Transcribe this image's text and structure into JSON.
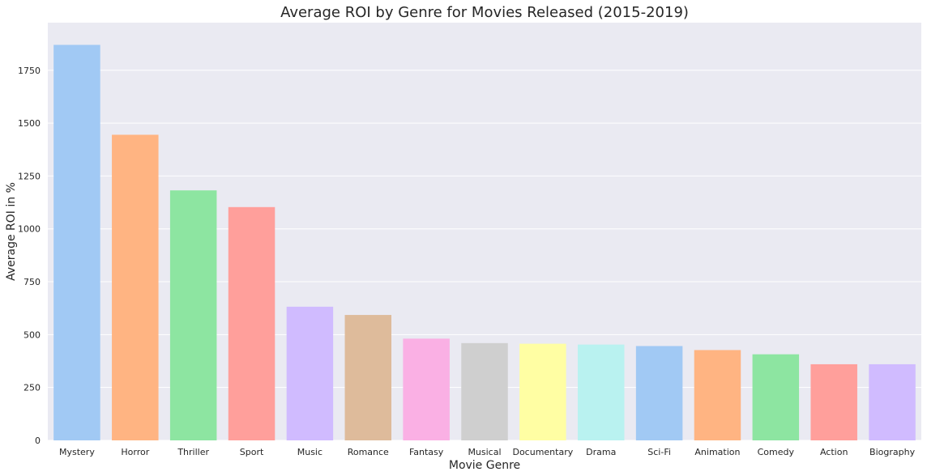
{
  "chart_data": {
    "type": "bar",
    "title": "Average ROI by Genre for Movies Released (2015-2019)",
    "xlabel": "Movie Genre",
    "ylabel": "Average ROI in %",
    "categories": [
      "Mystery",
      "Horror",
      "Thriller",
      "Sport",
      "Music",
      "Romance",
      "Fantasy",
      "Musical",
      "Documentary",
      "Drama",
      "Sci-Fi",
      "Animation",
      "Comedy",
      "Action",
      "Biography"
    ],
    "values": [
      1870,
      1445,
      1182,
      1103,
      632,
      593,
      481,
      460,
      457,
      453,
      446,
      427,
      407,
      360,
      360
    ],
    "ylim": [
      0,
      1975
    ],
    "yticks": [
      "0",
      "250",
      "500",
      "750",
      "1000",
      "1250",
      "1500",
      "1750"
    ],
    "grid": true,
    "colors": [
      "#a1c9f4",
      "#ffb482",
      "#8de5a1",
      "#ff9f9b",
      "#d0bbff",
      "#debb9b",
      "#fab0e4",
      "#cfcfcf",
      "#fffea3",
      "#b9f2f0",
      "#a1c9f4",
      "#ffb482",
      "#8de5a1",
      "#ff9f9b",
      "#d0bbff"
    ],
    "plot_background": "#eaeaf2"
  }
}
